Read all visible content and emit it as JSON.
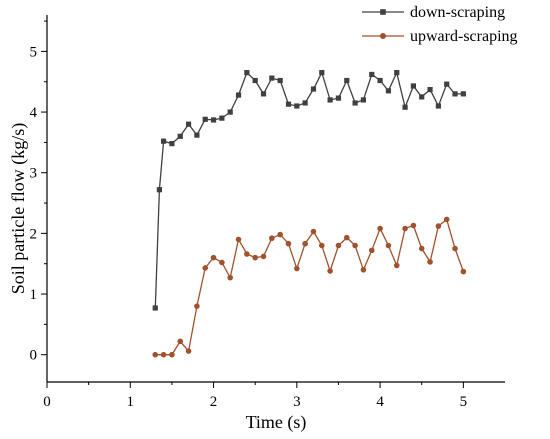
{
  "chart_data": {
    "type": "line",
    "title": "",
    "xlabel": "Time (s)",
    "ylabel": "Soil particle flow (kg/s)",
    "xlim": [
      0,
      5.5
    ],
    "ylim": [
      -0.45,
      5.6
    ],
    "xticks": [
      0,
      1,
      2,
      3,
      4,
      5
    ],
    "yticks": [
      0,
      1,
      2,
      3,
      4,
      5
    ],
    "grid": false,
    "legend_position": "top-right",
    "series": [
      {
        "name": "down-scraping",
        "color": "#404040",
        "marker": "square",
        "x": [
          1.3,
          1.35,
          1.4,
          1.5,
          1.6,
          1.7,
          1.8,
          1.9,
          2.0,
          2.1,
          2.2,
          2.3,
          2.4,
          2.5,
          2.6,
          2.7,
          2.8,
          2.9,
          3.0,
          3.1,
          3.2,
          3.3,
          3.4,
          3.5,
          3.6,
          3.7,
          3.8,
          3.9,
          4.0,
          4.1,
          4.2,
          4.3,
          4.4,
          4.5,
          4.6,
          4.7,
          4.8,
          4.9,
          5.0
        ],
        "y": [
          0.77,
          2.72,
          3.52,
          3.48,
          3.6,
          3.8,
          3.62,
          3.88,
          3.87,
          3.9,
          4.0,
          4.28,
          4.65,
          4.52,
          4.3,
          4.56,
          4.52,
          4.13,
          4.1,
          4.15,
          4.38,
          4.65,
          4.2,
          4.23,
          4.52,
          4.15,
          4.2,
          4.62,
          4.52,
          4.35,
          4.65,
          4.08,
          4.43,
          4.25,
          4.37,
          4.1,
          4.46,
          4.3,
          4.3
        ]
      },
      {
        "name": "upward-scraping",
        "color": "#a0522d",
        "marker": "circle",
        "x": [
          1.3,
          1.4,
          1.5,
          1.6,
          1.7,
          1.8,
          1.9,
          2.0,
          2.1,
          2.2,
          2.3,
          2.4,
          2.5,
          2.6,
          2.7,
          2.8,
          2.9,
          3.0,
          3.1,
          3.2,
          3.3,
          3.4,
          3.5,
          3.6,
          3.7,
          3.8,
          3.9,
          4.0,
          4.1,
          4.2,
          4.3,
          4.4,
          4.5,
          4.6,
          4.7,
          4.8,
          4.9,
          5.0
        ],
        "y": [
          0.0,
          0.0,
          0.0,
          0.22,
          0.06,
          0.8,
          1.43,
          1.6,
          1.52,
          1.27,
          1.9,
          1.66,
          1.6,
          1.62,
          1.92,
          1.98,
          1.83,
          1.42,
          1.83,
          2.03,
          1.8,
          1.38,
          1.8,
          1.93,
          1.8,
          1.4,
          1.72,
          2.08,
          1.8,
          1.47,
          2.08,
          2.13,
          1.75,
          1.53,
          2.12,
          2.23,
          1.75,
          1.37
        ]
      }
    ]
  }
}
